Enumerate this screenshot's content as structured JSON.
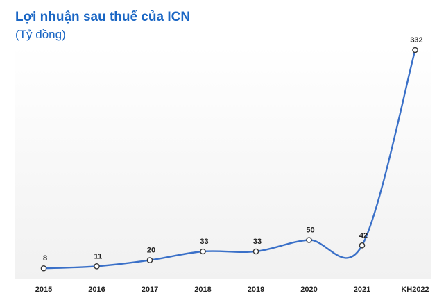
{
  "chart_data": {
    "type": "line",
    "title": "Lợi nhuận sau thuế của ICN",
    "subtitle": "(Tỷ đồng)",
    "categories": [
      "2015",
      "2016",
      "2017",
      "2018",
      "2019",
      "2020",
      "2021",
      "KH2022"
    ],
    "values": [
      8,
      11,
      20,
      33,
      33,
      50,
      42,
      332
    ],
    "value_labels": [
      "8",
      "11",
      "20",
      "33",
      "33",
      "50",
      "42",
      "332"
    ],
    "xlabel": "",
    "ylabel": "",
    "ylim": [
      0,
      340
    ],
    "grid": false,
    "series_color": "#3a70c8"
  }
}
